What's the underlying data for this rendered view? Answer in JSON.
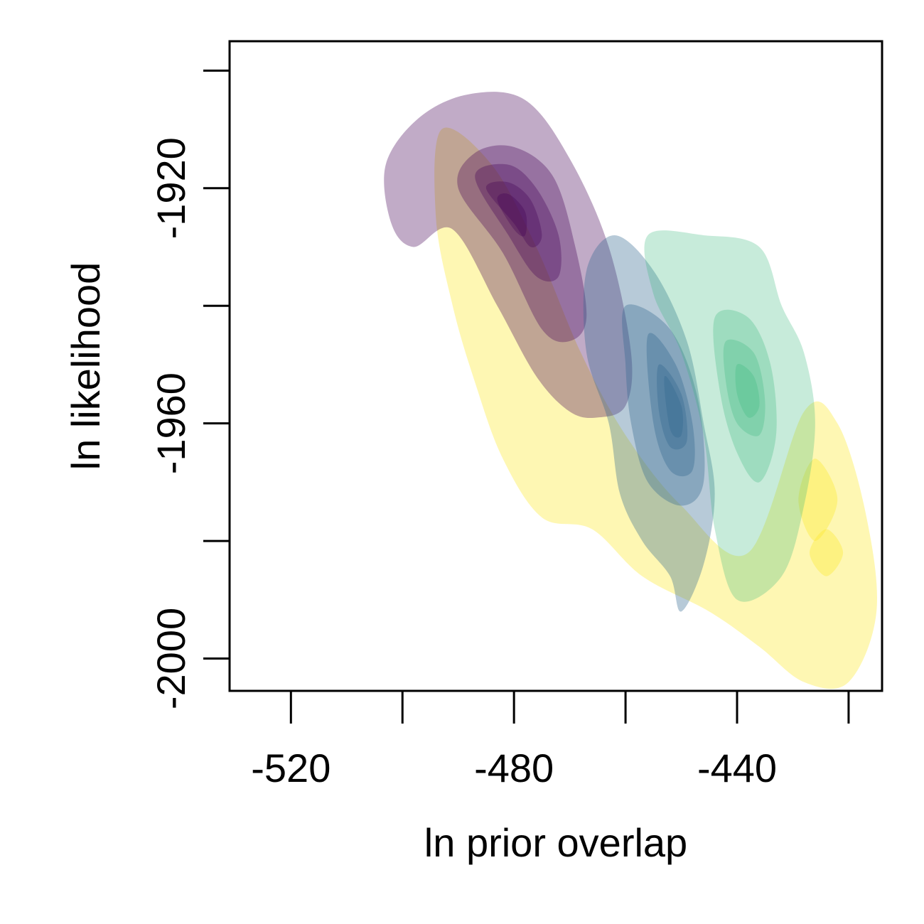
{
  "chart_data": {
    "type": "density-contour",
    "title": "",
    "xlabel": "ln  prior overlap",
    "ylabel": "ln likelihood",
    "xlim": [
      -531,
      -414
    ],
    "ylim": [
      -2005.5,
      -1895
    ],
    "x_ticks": [
      -520,
      -500,
      -480,
      -460,
      -440,
      -420
    ],
    "x_tick_labels": [
      "-520",
      "",
      "-480",
      "",
      "-440",
      ""
    ],
    "y_ticks": [
      -1900,
      -1920,
      -1940,
      -1960,
      -1980,
      -2000
    ],
    "y_tick_labels": [
      "",
      "-1920",
      "",
      "-1960",
      "",
      "-2000"
    ],
    "grid": false,
    "legend": "none",
    "series": [
      {
        "color": "#fde725",
        "contours": [
          {
            "opacity": 0.35,
            "points": [
              [
                -493,
                -1910
              ],
              [
                -484,
                -1916
              ],
              [
                -476,
                -1930
              ],
              [
                -468,
                -1948
              ],
              [
                -460,
                -1962
              ],
              [
                -450,
                -1974
              ],
              [
                -438,
                -1982
              ],
              [
                -428,
                -1958
              ],
              [
                -422,
                -1960
              ],
              [
                -417,
                -1975
              ],
              [
                -415,
                -1992
              ],
              [
                -420,
                -2004
              ],
              [
                -428,
                -2004
              ],
              [
                -436,
                -1998
              ],
              [
                -445,
                -1992
              ],
              [
                -457,
                -1986
              ],
              [
                -466,
                -1978
              ],
              [
                -475,
                -1976
              ],
              [
                -482,
                -1966
              ],
              [
                -487,
                -1953
              ],
              [
                -491,
                -1940
              ],
              [
                -494,
                -1925
              ]
            ]
          },
          {
            "opacity": 0.35,
            "points": [
              [
                -424,
                -1978
              ],
              [
                -421,
                -1982
              ],
              [
                -424,
                -1986
              ],
              [
                -427,
                -1982
              ]
            ]
          },
          {
            "opacity": 0.35,
            "points": [
              [
                -426,
                -1966
              ],
              [
                -422,
                -1973
              ],
              [
                -426,
                -1980
              ],
              [
                -429,
                -1973
              ]
            ]
          }
        ]
      },
      {
        "color": "#440154",
        "contours": [
          {
            "opacity": 0.33,
            "points": [
              [
                -491,
                -1927
              ],
              [
                -483,
                -1940
              ],
              [
                -476,
                -1952
              ],
              [
                -470,
                -1958
              ],
              [
                -465,
                -1959
              ],
              [
                -460,
                -1957
              ],
              [
                -459,
                -1948
              ],
              [
                -463,
                -1930
              ],
              [
                -470,
                -1915
              ],
              [
                -478,
                -1905
              ],
              [
                -488,
                -1904
              ],
              [
                -497,
                -1908
              ],
              [
                -503,
                -1916
              ],
              [
                -502,
                -1926
              ],
              [
                -498,
                -1930
              ]
            ]
          },
          {
            "opacity": 0.33,
            "points": [
              [
                -490,
                -1920
              ],
              [
                -482,
                -1931
              ],
              [
                -475,
                -1944
              ],
              [
                -470,
                -1946
              ],
              [
                -467,
                -1942
              ],
              [
                -469,
                -1930
              ],
              [
                -473,
                -1918
              ],
              [
                -480,
                -1913
              ],
              [
                -487,
                -1914
              ]
            ]
          },
          {
            "opacity": 0.33,
            "points": [
              [
                -487,
                -1918
              ],
              [
                -481,
                -1928
              ],
              [
                -476,
                -1935
              ],
              [
                -472,
                -1935
              ],
              [
                -472,
                -1928
              ],
              [
                -476,
                -1920
              ],
              [
                -481,
                -1916
              ]
            ]
          },
          {
            "opacity": 0.33,
            "points": [
              [
                -485,
                -1920
              ],
              [
                -480,
                -1926
              ],
              [
                -477,
                -1930
              ],
              [
                -475,
                -1928
              ],
              [
                -477,
                -1922
              ],
              [
                -481,
                -1919
              ]
            ]
          },
          {
            "opacity": 0.33,
            "points": [
              [
                -483,
                -1922
              ],
              [
                -480,
                -1927
              ],
              [
                -478,
                -1928
              ],
              [
                -478,
                -1924
              ],
              [
                -481,
                -1921
              ]
            ]
          }
        ]
      },
      {
        "color": "#31688e",
        "contours": [
          {
            "opacity": 0.35,
            "points": [
              [
                -462,
                -1928
              ],
              [
                -455,
                -1934
              ],
              [
                -449,
                -1946
              ],
              [
                -446,
                -1960
              ],
              [
                -444,
                -1972
              ],
              [
                -446,
                -1984
              ],
              [
                -450,
                -1992
              ],
              [
                -452,
                -1986
              ],
              [
                -457,
                -1980
              ],
              [
                -461,
                -1972
              ],
              [
                -463,
                -1960
              ],
              [
                -467,
                -1948
              ],
              [
                -467,
                -1934
              ]
            ]
          },
          {
            "opacity": 0.35,
            "points": [
              [
                -460,
                -1940
              ],
              [
                -452,
                -1944
              ],
              [
                -447,
                -1956
              ],
              [
                -446,
                -1970
              ],
              [
                -450,
                -1974
              ],
              [
                -456,
                -1970
              ],
              [
                -459,
                -1960
              ],
              [
                -460,
                -1950
              ]
            ]
          },
          {
            "opacity": 0.35,
            "points": [
              [
                -456,
                -1945
              ],
              [
                -451,
                -1950
              ],
              [
                -448,
                -1960
              ],
              [
                -448,
                -1968
              ],
              [
                -452,
                -1968
              ],
              [
                -455,
                -1960
              ]
            ]
          },
          {
            "opacity": 0.35,
            "points": [
              [
                -454,
                -1950
              ],
              [
                -450,
                -1955
              ],
              [
                -449,
                -1963
              ],
              [
                -452,
                -1964
              ],
              [
                -454,
                -1958
              ]
            ]
          },
          {
            "opacity": 0.35,
            "points": [
              [
                -453,
                -1952
              ],
              [
                -450,
                -1957
              ],
              [
                -450,
                -1962
              ],
              [
                -452,
                -1961
              ]
            ]
          }
        ]
      },
      {
        "color": "#35b779",
        "contours": [
          {
            "opacity": 0.28,
            "points": [
              [
                -456,
                -1928
              ],
              [
                -446,
                -1928
              ],
              [
                -436,
                -1930
              ],
              [
                -432,
                -1940
              ],
              [
                -428,
                -1948
              ],
              [
                -426,
                -1960
              ],
              [
                -428,
                -1974
              ],
              [
                -432,
                -1986
              ],
              [
                -440,
                -1990
              ],
              [
                -444,
                -1978
              ],
              [
                -446,
                -1962
              ],
              [
                -450,
                -1948
              ],
              [
                -455,
                -1938
              ]
            ]
          },
          {
            "opacity": 0.28,
            "points": [
              [
                -444,
                -1942
              ],
              [
                -438,
                -1942
              ],
              [
                -434,
                -1950
              ],
              [
                -433,
                -1962
              ],
              [
                -436,
                -1970
              ],
              [
                -440,
                -1965
              ],
              [
                -443,
                -1955
              ]
            ]
          },
          {
            "opacity": 0.28,
            "points": [
              [
                -442,
                -1946
              ],
              [
                -437,
                -1948
              ],
              [
                -435,
                -1956
              ],
              [
                -436,
                -1962
              ],
              [
                -440,
                -1960
              ],
              [
                -442,
                -1953
              ]
            ]
          },
          {
            "opacity": 0.28,
            "points": [
              [
                -440,
                -1950
              ],
              [
                -437,
                -1952
              ],
              [
                -436,
                -1957
              ],
              [
                -438,
                -1959
              ],
              [
                -440,
                -1955
              ]
            ]
          }
        ]
      }
    ]
  }
}
